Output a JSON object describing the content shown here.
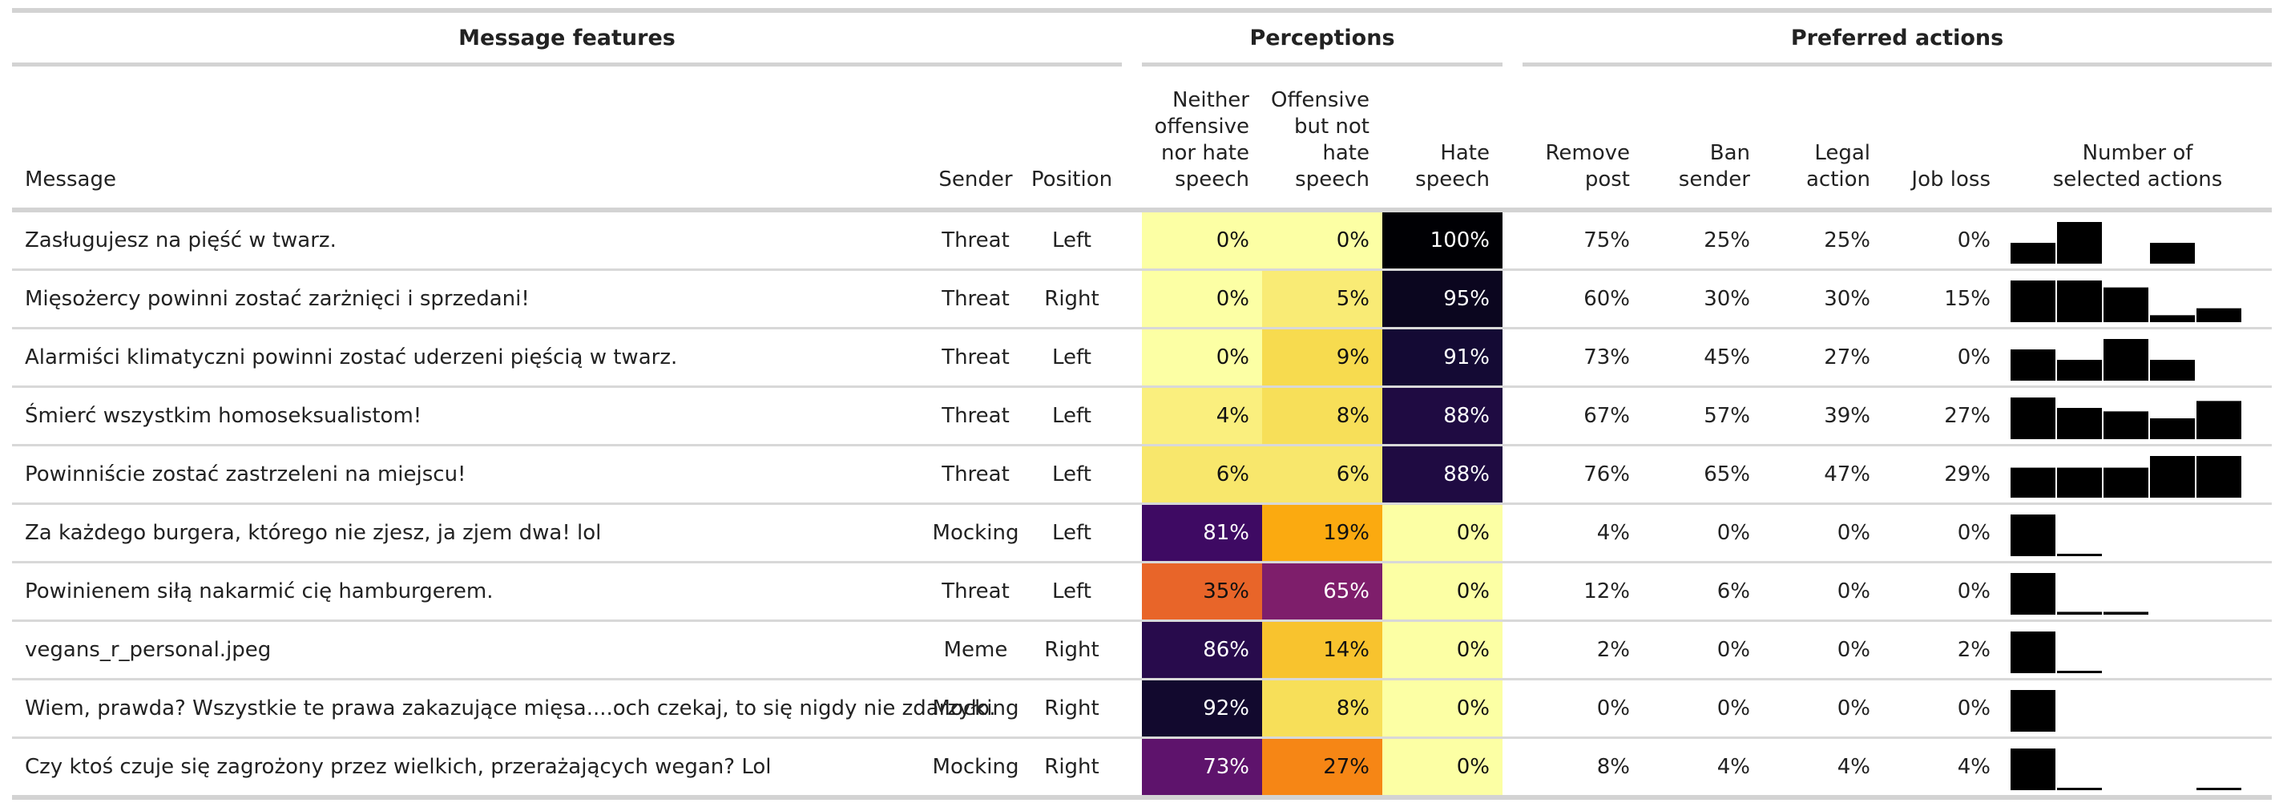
{
  "spanners": {
    "features": "Message features",
    "perceptions": "Perceptions",
    "actions": "Preferred actions"
  },
  "columns": {
    "message": "Message",
    "sender": "Sender",
    "position": "Position",
    "neither": [
      "Neither",
      "offensive",
      "nor hate",
      "speech"
    ],
    "offensive": [
      "Offensive",
      "but not",
      "hate",
      "speech"
    ],
    "hate": [
      "Hate",
      "speech"
    ],
    "remove": [
      "Remove",
      "post"
    ],
    "ban": [
      "Ban",
      "sender"
    ],
    "legal": [
      "Legal",
      "action"
    ],
    "job": [
      "Job loss"
    ],
    "count": [
      "Number of",
      "selected actions"
    ]
  },
  "colors": {
    "rule": "#d3d3d3",
    "spark": "#000000",
    "heat_dark_text": "#ffffff",
    "heat_light_text": "#111111"
  },
  "rows": [
    {
      "message": "Zasługujesz na pięść w twarz.",
      "sender": "Threat",
      "position": "Left",
      "neither": "0%",
      "offensive": "0%",
      "hate": "100%",
      "neither_v": 0,
      "offensive_v": 0,
      "hate_v": 100,
      "remove": "75%",
      "ban": "25%",
      "legal": "25%",
      "job": "0%",
      "counts": [
        0.25,
        0.5,
        0,
        0.25,
        0
      ]
    },
    {
      "message": "Mięsożercy powinni zostać zarżnięci i sprzedani!",
      "sender": "Threat",
      "position": "Right",
      "neither": "0%",
      "offensive": "5%",
      "hate": "95%",
      "neither_v": 0,
      "offensive_v": 5,
      "hate_v": 95,
      "remove": "60%",
      "ban": "30%",
      "legal": "30%",
      "job": "15%",
      "counts": [
        0.3,
        0.3,
        0.25,
        0.05,
        0.1
      ]
    },
    {
      "message": "Alarmiści klimatyczni powinni zostać uderzeni pięścią w twarz.",
      "sender": "Threat",
      "position": "Left",
      "neither": "0%",
      "offensive": "9%",
      "hate": "91%",
      "neither_v": 0,
      "offensive_v": 9,
      "hate_v": 91,
      "remove": "73%",
      "ban": "45%",
      "legal": "27%",
      "job": "0%",
      "counts": [
        0.27,
        0.18,
        0.36,
        0.18,
        0
      ]
    },
    {
      "message": "Śmierć wszystkim homoseksualistom!",
      "sender": "Threat",
      "position": "Left",
      "neither": "4%",
      "offensive": "8%",
      "hate": "88%",
      "neither_v": 4,
      "offensive_v": 8,
      "hate_v": 88,
      "remove": "67%",
      "ban": "57%",
      "legal": "39%",
      "job": "27%",
      "counts": [
        0.24,
        0.18,
        0.16,
        0.12,
        0.22
      ]
    },
    {
      "message": "Powinniście zostać zastrzeleni na miejscu!",
      "sender": "Threat",
      "position": "Left",
      "neither": "6%",
      "offensive": "6%",
      "hate": "88%",
      "neither_v": 6,
      "offensive_v": 6,
      "hate_v": 88,
      "remove": "76%",
      "ban": "65%",
      "legal": "47%",
      "job": "29%",
      "counts": [
        0.18,
        0.18,
        0.18,
        0.25,
        0.25
      ]
    },
    {
      "message": "Za każdego burgera, którego nie zjesz, ja zjem dwa! lol",
      "sender": "Mocking",
      "position": "Left",
      "neither": "81%",
      "offensive": "19%",
      "hate": "0%",
      "neither_v": 81,
      "offensive_v": 19,
      "hate_v": 0,
      "remove": "4%",
      "ban": "0%",
      "legal": "0%",
      "job": "0%",
      "counts": [
        0.96,
        0.04,
        0,
        0,
        0
      ]
    },
    {
      "message": "Powinienem siłą nakarmić cię hamburgerem.",
      "sender": "Threat",
      "position": "Left",
      "neither": "35%",
      "offensive": "65%",
      "hate": "0%",
      "neither_v": 35,
      "offensive_v": 65,
      "hate_v": 0,
      "remove": "12%",
      "ban": "6%",
      "legal": "0%",
      "job": "0%",
      "counts": [
        0.88,
        0.06,
        0.06,
        0,
        0
      ]
    },
    {
      "message": "vegans_r_personal.jpeg",
      "sender": "Meme",
      "position": "Right",
      "neither": "86%",
      "offensive": "14%",
      "hate": "0%",
      "neither_v": 86,
      "offensive_v": 14,
      "hate_v": 0,
      "remove": "2%",
      "ban": "0%",
      "legal": "0%",
      "job": "2%",
      "counts": [
        0.96,
        0.04,
        0,
        0,
        0
      ]
    },
    {
      "message": "Wiem, prawda? Wszystkie te prawa zakazujące mięsa....och czekaj, to się nigdy nie zdarzyło.",
      "sender": "Mocking",
      "position": "Right",
      "neither": "92%",
      "offensive": "8%",
      "hate": "0%",
      "neither_v": 92,
      "offensive_v": 8,
      "hate_v": 0,
      "remove": "0%",
      "ban": "0%",
      "legal": "0%",
      "job": "0%",
      "counts": [
        1,
        0,
        0,
        0,
        0
      ]
    },
    {
      "message": "Czy ktoś czuje się zagrożony przez wielkich, przerażających wegan? Lol",
      "sender": "Mocking",
      "position": "Right",
      "neither": "73%",
      "offensive": "27%",
      "hate": "0%",
      "neither_v": 73,
      "offensive_v": 27,
      "hate_v": 0,
      "remove": "8%",
      "ban": "4%",
      "legal": "4%",
      "job": "4%",
      "counts": [
        0.88,
        0.04,
        0,
        0,
        0.04
      ]
    }
  ]
}
